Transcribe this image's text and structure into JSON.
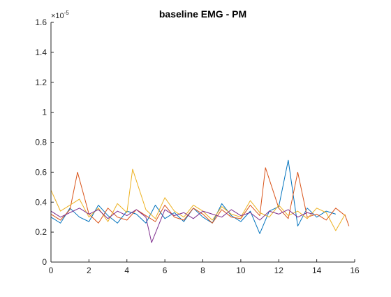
{
  "chart_data": {
    "type": "line",
    "title": "baseline EMG - PM",
    "xlabel": "",
    "ylabel": "",
    "xlim": [
      0,
      16
    ],
    "ylim": [
      0,
      1.6e-05
    ],
    "y_exponent_label": "×10",
    "y_exponent_value": "-5",
    "x_ticks": [
      0,
      2,
      4,
      6,
      8,
      10,
      12,
      14,
      16
    ],
    "x_tick_labels": [
      "0",
      "2",
      "4",
      "6",
      "8",
      "10",
      "12",
      "14",
      "16"
    ],
    "y_ticks": [
      0,
      2e-06,
      4e-06,
      6e-06,
      8e-06,
      1e-05,
      1.2e-05,
      1.4e-05,
      1.6e-05
    ],
    "y_tick_labels": [
      "0",
      "0.2",
      "0.4",
      "0.6",
      "0.8",
      "1",
      "1.2",
      "1.4",
      "1.6"
    ],
    "grid": false,
    "legend": "none",
    "series": [
      {
        "color": "#0072BD",
        "x": [
          0,
          0.5,
          1.0,
          1.5,
          2.0,
          2.5,
          3.0,
          3.5,
          4.0,
          4.5,
          5.0,
          5.5,
          6.0,
          6.5,
          7.0,
          7.5,
          8.0,
          8.5,
          9.0,
          9.5,
          10.0,
          10.5,
          11.0,
          11.5,
          12.0,
          12.5,
          13.0,
          13.5,
          14.0,
          14.5,
          15.0
        ],
        "values": [
          3e-06,
          2.6e-06,
          3.6e-06,
          3e-06,
          2.7e-06,
          3.8e-06,
          3.1e-06,
          2.6e-06,
          3.4e-06,
          3.2e-06,
          2.6e-06,
          3.8e-06,
          2.9e-06,
          3.3e-06,
          2.7e-06,
          3.6e-06,
          3e-06,
          2.6e-06,
          3.9e-06,
          3.1e-06,
          2.7e-06,
          3.4e-06,
          1.9e-06,
          3.4e-06,
          3.7e-06,
          6.8e-06,
          2.4e-06,
          3.6e-06,
          3e-06,
          3.4e-06,
          3.2e-06
        ]
      },
      {
        "color": "#D95319",
        "x": [
          0,
          0.5,
          1.0,
          1.4,
          2.0,
          2.5,
          3.0,
          3.5,
          4.0,
          4.5,
          5.0,
          5.5,
          6.0,
          6.5,
          7.0,
          7.5,
          8.0,
          8.5,
          9.0,
          9.5,
          10.0,
          10.5,
          11.0,
          11.3,
          12.0,
          12.5,
          13.0,
          13.5,
          14.0,
          14.5,
          15.0,
          15.5,
          15.7
        ],
        "values": [
          3.2e-06,
          2.8e-06,
          3.5e-06,
          6e-06,
          3.2e-06,
          2.6e-06,
          3.6e-06,
          3e-06,
          2.8e-06,
          3.5e-06,
          3.1e-06,
          2.7e-06,
          3.8e-06,
          3e-06,
          2.8e-06,
          3.6e-06,
          3.2e-06,
          2.6e-06,
          3.5e-06,
          3e-06,
          2.9e-06,
          3.8e-06,
          3.1e-06,
          6.3e-06,
          3.6e-06,
          2.9e-06,
          6e-06,
          3e-06,
          3.2e-06,
          2.8e-06,
          3.6e-06,
          3.1e-06,
          2.4e-06
        ]
      },
      {
        "color": "#EDB120",
        "x": [
          0,
          0.5,
          1.0,
          1.5,
          2.0,
          2.5,
          3.0,
          3.5,
          4.0,
          4.3,
          5.0,
          5.5,
          6.0,
          6.5,
          7.0,
          7.5,
          8.0,
          8.5,
          9.0,
          9.5,
          10.0,
          10.5,
          11.0,
          11.5,
          12.0,
          12.5,
          13.0,
          13.5,
          14.0,
          14.5,
          15.0,
          15.5
        ],
        "values": [
          4.8e-06,
          3.4e-06,
          3.8e-06,
          4.2e-06,
          3e-06,
          3.6e-06,
          2.7e-06,
          3.9e-06,
          3.3e-06,
          6.2e-06,
          3.5e-06,
          2.9e-06,
          4.3e-06,
          3.4e-06,
          3e-06,
          3.8e-06,
          3.4e-06,
          2.8e-06,
          3.7e-06,
          3.2e-06,
          3e-06,
          4.1e-06,
          3.3e-06,
          3e-06,
          3.8e-06,
          3.1e-06,
          3.4e-06,
          2.9e-06,
          3.6e-06,
          3.3e-06,
          2.1e-06,
          3.2e-06
        ]
      },
      {
        "color": "#7E2F8E",
        "x": [
          0,
          0.5,
          1.0,
          1.5,
          2.0,
          2.5,
          3.0,
          3.5,
          4.0,
          4.5,
          5.0,
          5.3,
          6.0,
          6.5,
          7.0,
          7.5,
          8.0,
          8.5,
          9.0,
          9.5,
          10.0,
          10.5,
          11.0,
          11.5,
          12.0,
          12.5,
          13.0,
          13.5,
          13.8
        ],
        "values": [
          3.4e-06,
          3e-06,
          3.3e-06,
          3.6e-06,
          3.2e-06,
          3.5e-06,
          2.9e-06,
          3.4e-06,
          3.1e-06,
          3.5e-06,
          3e-06,
          1.3e-06,
          3.5e-06,
          3.1e-06,
          3.3e-06,
          2.9e-06,
          3.4e-06,
          3.2e-06,
          3e-06,
          3.5e-06,
          3.1e-06,
          3.3e-06,
          2.8e-06,
          3.4e-06,
          3.2e-06,
          3.5e-06,
          3e-06,
          3.3e-06,
          3.2e-06
        ]
      }
    ]
  }
}
